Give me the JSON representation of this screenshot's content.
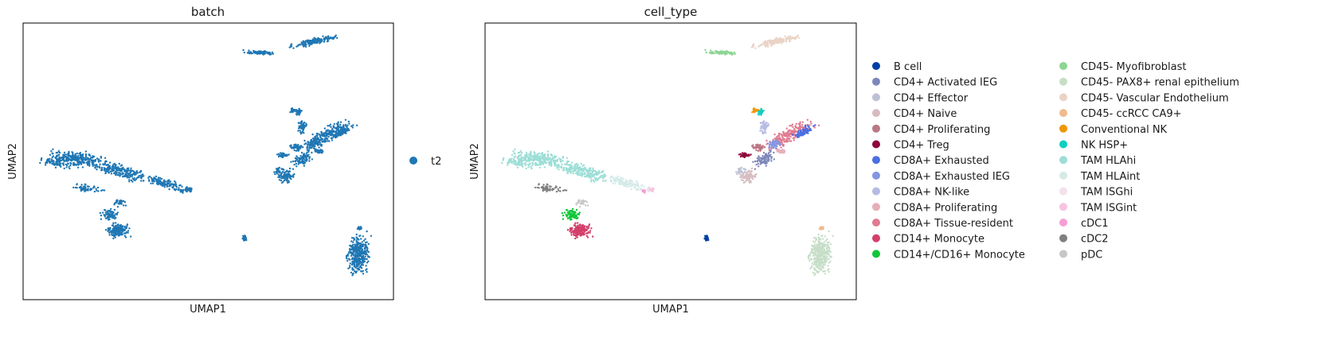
{
  "chart_data": [
    {
      "type": "scatter",
      "title": "batch",
      "xlabel": "UMAP1",
      "ylabel": "UMAP2",
      "legend_placement": "right",
      "ticks": false,
      "grid": false,
      "series": [
        {
          "name": "t2",
          "color": "#1f77b4"
        }
      ]
    },
    {
      "type": "scatter",
      "title": "cell_type",
      "xlabel": "UMAP1",
      "ylabel": "UMAP2",
      "legend_placement": "right",
      "ticks": false,
      "grid": false,
      "series": [
        {
          "name": "B cell",
          "color": "#023fa5"
        },
        {
          "name": "CD4+ Activated IEG",
          "color": "#7d87b9"
        },
        {
          "name": "CD4+ Effector",
          "color": "#bec1d4"
        },
        {
          "name": "CD4+ Naive",
          "color": "#d6bcc0"
        },
        {
          "name": "CD4+ Proliferating",
          "color": "#bb7784"
        },
        {
          "name": "CD4+ Treg",
          "color": "#8e063b"
        },
        {
          "name": "CD8A+ Exhausted",
          "color": "#4a6fe3"
        },
        {
          "name": "CD8A+ Exhausted IEG",
          "color": "#8595e1"
        },
        {
          "name": "CD8A+ NK-like",
          "color": "#b5bbe3"
        },
        {
          "name": "CD8A+ Proliferating",
          "color": "#e6afb9"
        },
        {
          "name": "CD8A+ Tissue-resident",
          "color": "#e07b91"
        },
        {
          "name": "CD14+ Monocyte",
          "color": "#d33f6a"
        },
        {
          "name": "CD14+/CD16+ Monocyte",
          "color": "#11c638"
        },
        {
          "name": "CD45- Myofibroblast",
          "color": "#8dd593"
        },
        {
          "name": "CD45- PAX8+ renal epithelium",
          "color": "#c6dec7"
        },
        {
          "name": "CD45- Vascular Endothelium",
          "color": "#ead3c6"
        },
        {
          "name": "CD45- ccRCC CA9+",
          "color": "#f0b98d"
        },
        {
          "name": "Conventional NK",
          "color": "#ef9708"
        },
        {
          "name": "NK HSP+",
          "color": "#0fcfc0"
        },
        {
          "name": "TAM HLAhi",
          "color": "#9cded6"
        },
        {
          "name": "TAM HLAint",
          "color": "#d5eae7"
        },
        {
          "name": "TAM ISGhi",
          "color": "#f3e1eb"
        },
        {
          "name": "TAM ISGint",
          "color": "#f6c4e1"
        },
        {
          "name": "cDC1",
          "color": "#f79cd4"
        },
        {
          "name": "cDC2",
          "color": "#7f7f7f"
        },
        {
          "name": "pDC",
          "color": "#c7c7c7"
        }
      ]
    }
  ]
}
